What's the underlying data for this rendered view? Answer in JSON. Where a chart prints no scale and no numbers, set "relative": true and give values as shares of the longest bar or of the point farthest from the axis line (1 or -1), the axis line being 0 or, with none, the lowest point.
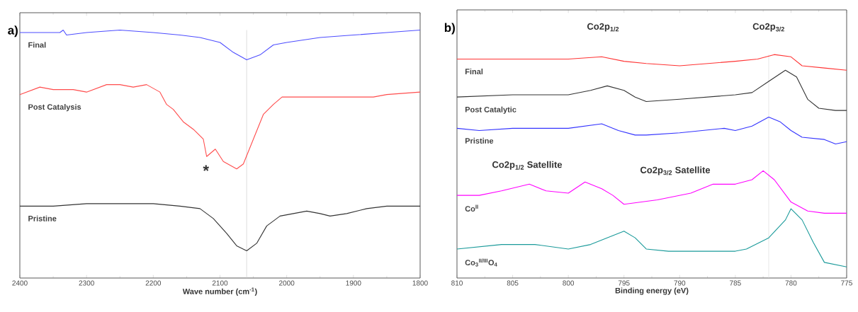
{
  "chart_data": [
    {
      "type": "line",
      "title": "a)",
      "xlabel": "Wave number (cm$^{-1}$)",
      "relative": true,
      "tick_labels": "x",
      "xlim": [
        2400,
        1800
      ],
      "xticks": [
        2400,
        2300,
        2200,
        2100,
        2000,
        1900,
        1800
      ],
      "series": [
        {
          "name": "Final",
          "color": "#4d4dff",
          "x": [
            2400,
            2340,
            2335,
            2330,
            2300,
            2250,
            2200,
            2160,
            2130,
            2100,
            2080,
            2060,
            2040,
            2020,
            2000,
            1950,
            1900,
            1850,
            1800
          ],
          "values": [
            0.99,
            0.99,
            1.0,
            0.98,
            0.99,
            1.0,
            0.99,
            0.98,
            0.97,
            0.95,
            0.91,
            0.88,
            0.9,
            0.94,
            0.95,
            0.97,
            0.98,
            0.99,
            1.0
          ]
        },
        {
          "name": "Post Catalysis",
          "color": "#ff4d4d",
          "x": [
            2400,
            2370,
            2350,
            2320,
            2300,
            2270,
            2250,
            2230,
            2210,
            2190,
            2180,
            2170,
            2155,
            2140,
            2125,
            2120,
            2107,
            2095,
            2075,
            2065,
            2050,
            2035,
            2020,
            2007,
            2000,
            1950,
            1900,
            1870,
            1850,
            1800
          ],
          "values": [
            0.74,
            0.77,
            0.76,
            0.76,
            0.75,
            0.78,
            0.78,
            0.77,
            0.78,
            0.75,
            0.7,
            0.68,
            0.63,
            0.6,
            0.56,
            0.49,
            0.52,
            0.47,
            0.44,
            0.46,
            0.56,
            0.66,
            0.7,
            0.73,
            0.73,
            0.73,
            0.73,
            0.73,
            0.74,
            0.75
          ]
        },
        {
          "name": "Pristine",
          "color": "#333333",
          "x": [
            2400,
            2350,
            2300,
            2250,
            2200,
            2160,
            2130,
            2110,
            2090,
            2075,
            2060,
            2045,
            2030,
            2010,
            1990,
            1970,
            1950,
            1935,
            1910,
            1880,
            1850,
            1800
          ],
          "values": [
            0.29,
            0.29,
            0.3,
            0.3,
            0.3,
            0.29,
            0.28,
            0.24,
            0.18,
            0.13,
            0.11,
            0.14,
            0.21,
            0.25,
            0.26,
            0.27,
            0.26,
            0.25,
            0.26,
            0.28,
            0.29,
            0.29
          ]
        }
      ],
      "ref_lines": [
        {
          "axis": "x",
          "value": 2060,
          "color": "#c8c8c8"
        }
      ],
      "annotations": [
        "*"
      ]
    },
    {
      "type": "line",
      "title": "b)",
      "xlabel": "Binding energy (eV)",
      "relative": true,
      "tick_labels": "x",
      "xlim": [
        810,
        775
      ],
      "xticks": [
        810,
        805,
        800,
        795,
        790,
        785,
        780,
        775
      ],
      "series": [
        {
          "name": "Final",
          "color": "#ff3333",
          "x": [
            810,
            805,
            800,
            797,
            795,
            793,
            790,
            785,
            783,
            781.5,
            780,
            779,
            777,
            775
          ],
          "values": [
            0.98,
            0.98,
            0.98,
            0.99,
            0.97,
            0.96,
            0.95,
            0.97,
            0.98,
            1.0,
            0.99,
            0.95,
            0.94,
            0.93
          ]
        },
        {
          "name": "Post Catalytic",
          "color": "#333333",
          "x": [
            810,
            805,
            800,
            798,
            796.5,
            795,
            794,
            793,
            790,
            785,
            783.5,
            782,
            780.5,
            779.5,
            778.5,
            777.5,
            776,
            775
          ],
          "values": [
            0.81,
            0.82,
            0.82,
            0.84,
            0.86,
            0.84,
            0.81,
            0.79,
            0.8,
            0.82,
            0.83,
            0.88,
            0.93,
            0.9,
            0.8,
            0.76,
            0.75,
            0.75
          ]
        },
        {
          "name": "Pristine",
          "color": "#3333ff",
          "x": [
            810,
            808,
            805,
            800,
            797,
            795.5,
            794,
            793,
            790,
            786,
            785,
            783.5,
            782,
            781,
            780,
            779,
            777,
            776,
            775
          ],
          "values": [
            0.67,
            0.66,
            0.67,
            0.67,
            0.69,
            0.66,
            0.64,
            0.64,
            0.65,
            0.67,
            0.66,
            0.68,
            0.72,
            0.7,
            0.66,
            0.63,
            0.62,
            0.6,
            0.61
          ]
        },
        {
          "name": "Co$^{II}$",
          "color": "#ff00ff",
          "x": [
            810,
            808,
            806,
            803.5,
            802,
            800,
            798.5,
            797,
            796,
            795,
            792,
            789,
            787,
            785,
            783.5,
            782.5,
            781.5,
            780,
            778.5,
            777,
            775
          ],
          "values": [
            0.37,
            0.37,
            0.39,
            0.42,
            0.39,
            0.38,
            0.43,
            0.4,
            0.37,
            0.33,
            0.35,
            0.38,
            0.42,
            0.42,
            0.44,
            0.48,
            0.44,
            0.34,
            0.3,
            0.29,
            0.29
          ]
        },
        {
          "name": "Co$_{3}$$^{II/III}$O$_{4}$",
          "color": "#1a9a9a",
          "x": [
            810,
            806,
            803,
            800,
            798,
            796,
            795,
            794,
            793,
            791,
            788,
            785,
            784,
            782,
            780.5,
            780,
            779,
            778,
            777,
            775
          ],
          "values": [
            0.13,
            0.15,
            0.15,
            0.13,
            0.15,
            0.19,
            0.21,
            0.18,
            0.13,
            0.12,
            0.12,
            0.12,
            0.13,
            0.18,
            0.26,
            0.31,
            0.26,
            0.16,
            0.07,
            0.05
          ]
        }
      ],
      "ref_lines": [
        {
          "axis": "x",
          "value": 782,
          "color": "#d8d8d8"
        }
      ],
      "annotations": [
        "Co2p$_{1/2}$",
        "Co2p$_{3/2}$",
        "Co2p$_{1/2}$ Satellite",
        "Co2p$_{3/2}$ Satellite"
      ]
    }
  ]
}
